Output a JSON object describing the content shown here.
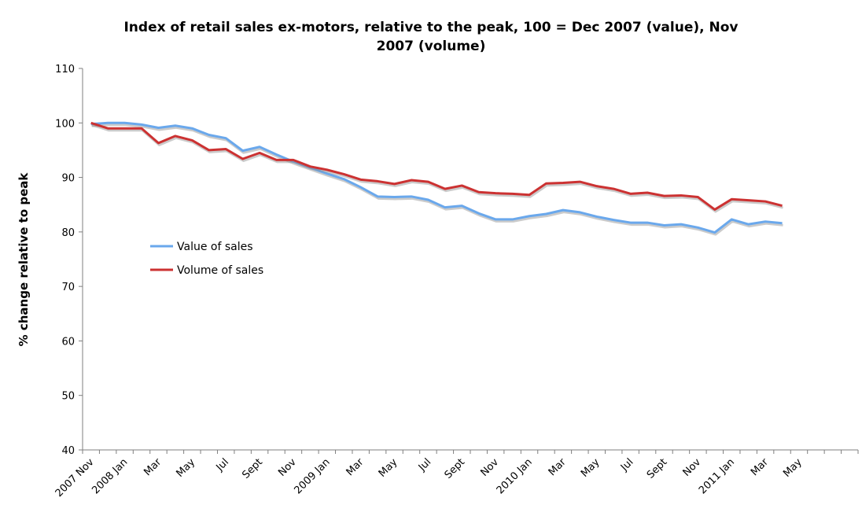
{
  "chart_data": {
    "type": "line",
    "title_lines": [
      "Index of retail sales ex-motors, relative to the peak, 100 = Dec 2007 (value), Nov",
      "2007 (volume)"
    ],
    "xlabel": "",
    "ylabel": "% change relative to peak",
    "ylim": [
      40,
      110
    ],
    "yticks": [
      40,
      50,
      60,
      70,
      80,
      90,
      100,
      110
    ],
    "grid": false,
    "legend_position": "left-middle",
    "x_slots": 46,
    "x_tick_labels": [
      {
        "index": 0,
        "label": "2007 Nov"
      },
      {
        "index": 2,
        "label": "2008 Jan"
      },
      {
        "index": 4,
        "label": "Mar"
      },
      {
        "index": 6,
        "label": "May"
      },
      {
        "index": 8,
        "label": "Jul"
      },
      {
        "index": 10,
        "label": "Sept"
      },
      {
        "index": 12,
        "label": "Nov"
      },
      {
        "index": 14,
        "label": "2009 Jan"
      },
      {
        "index": 16,
        "label": "Mar"
      },
      {
        "index": 18,
        "label": "May"
      },
      {
        "index": 20,
        "label": "Jul"
      },
      {
        "index": 22,
        "label": "Sept"
      },
      {
        "index": 24,
        "label": "Nov"
      },
      {
        "index": 26,
        "label": "2010 Jan"
      },
      {
        "index": 28,
        "label": "Mar"
      },
      {
        "index": 30,
        "label": "May"
      },
      {
        "index": 32,
        "label": "Jul"
      },
      {
        "index": 34,
        "label": "Sept"
      },
      {
        "index": 36,
        "label": "Nov"
      },
      {
        "index": 38,
        "label": "2011 Jan"
      },
      {
        "index": 40,
        "label": "Mar"
      },
      {
        "index": 42,
        "label": "May"
      }
    ],
    "series": [
      {
        "name": "Value of sales",
        "color": "#6aa8ec",
        "values": [
          99.8,
          100.0,
          100.0,
          99.7,
          99.1,
          99.5,
          99.0,
          97.8,
          97.2,
          94.9,
          95.6,
          94.2,
          92.9,
          91.8,
          90.7,
          89.7,
          88.2,
          86.5,
          86.4,
          86.5,
          85.9,
          84.5,
          84.8,
          83.4,
          82.3,
          82.3,
          82.9,
          83.3,
          84.0,
          83.6,
          82.8,
          82.2,
          81.7,
          81.7,
          81.2,
          81.4,
          80.8,
          79.9,
          82.3,
          81.4,
          81.9,
          81.6
        ]
      },
      {
        "name": "Volume of sales",
        "color": "#cc3232",
        "values": [
          100.0,
          99.0,
          99.0,
          99.0,
          96.3,
          97.6,
          96.8,
          95.0,
          95.2,
          93.4,
          94.5,
          93.2,
          93.2,
          92.0,
          91.4,
          90.6,
          89.6,
          89.3,
          88.8,
          89.5,
          89.2,
          87.9,
          88.5,
          87.3,
          87.1,
          87.0,
          86.8,
          88.9,
          89.0,
          89.2,
          88.4,
          87.9,
          87.0,
          87.2,
          86.6,
          86.7,
          86.4,
          84.1,
          86.0,
          85.8,
          85.6,
          84.8
        ]
      }
    ]
  }
}
